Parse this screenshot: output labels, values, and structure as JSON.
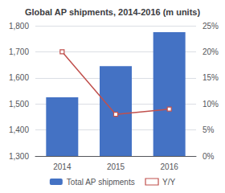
{
  "chart_data": {
    "type": "bar",
    "title": "Global AP shipments, 2014-2016 (m units)",
    "categories": [
      "2014",
      "2015",
      "2016"
    ],
    "series": [
      {
        "name": "Total AP shipments",
        "type": "bar",
        "color": "#4472C4",
        "values": [
          1525,
          1645,
          1775
        ]
      },
      {
        "name": "Y/Y",
        "type": "line",
        "color": "#C0504D",
        "marker": "square",
        "axis": "y2",
        "values": [
          0.2,
          0.08,
          0.09
        ]
      }
    ],
    "ylim": [
      1300,
      1800
    ],
    "yticks": [
      {
        "value": 1300,
        "label": "1,300"
      },
      {
        "value": 1400,
        "label": "1,400"
      },
      {
        "value": 1500,
        "label": "1,500"
      },
      {
        "value": 1600,
        "label": "1,600"
      },
      {
        "value": 1700,
        "label": "1,700"
      },
      {
        "value": 1800,
        "label": "1,800"
      }
    ],
    "y2lim": [
      0,
      0.25
    ],
    "y2ticks": [
      {
        "value": 0.0,
        "label": "0%"
      },
      {
        "value": 0.05,
        "label": "5%"
      },
      {
        "value": 0.1,
        "label": "10%"
      },
      {
        "value": 0.15,
        "label": "15%"
      },
      {
        "value": 0.2,
        "label": "20%"
      },
      {
        "value": 0.25,
        "label": "25%"
      }
    ],
    "grid": true,
    "legend": "bottom"
  }
}
